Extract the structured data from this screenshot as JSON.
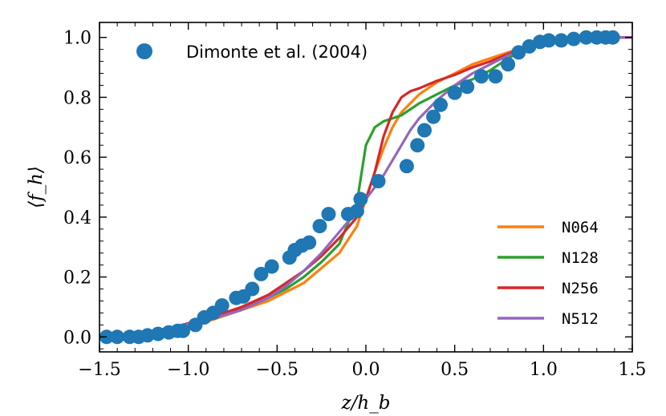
{
  "chart_data": {
    "type": "line",
    "xlabel": "z/h_b",
    "ylabel": "⟨f_h⟩",
    "xlim": [
      -1.5,
      1.5
    ],
    "ylim": [
      -0.05,
      1.05
    ],
    "xticks": [
      -1.5,
      -1.0,
      -0.5,
      0.0,
      0.5,
      1.0,
      1.5
    ],
    "xtick_labels": [
      "−1.5",
      "−1.0",
      "−0.5",
      "0.0",
      "0.5",
      "1.0",
      "1.5"
    ],
    "yticks": [
      0.0,
      0.2,
      0.4,
      0.6,
      0.8,
      1.0
    ],
    "ytick_labels": [
      "0.0",
      "0.2",
      "0.4",
      "0.6",
      "0.8",
      "1.0"
    ],
    "grid": false,
    "legend_placement": [
      "top-left",
      "lower-right"
    ],
    "scatter": {
      "name": "Dimonte et al. (2004)",
      "color": "#1f77b4",
      "points": [
        [
          -1.46,
          0.0
        ],
        [
          -1.4,
          0.0
        ],
        [
          -1.33,
          0.0
        ],
        [
          -1.28,
          0.0
        ],
        [
          -1.23,
          0.005
        ],
        [
          -1.17,
          0.01
        ],
        [
          -1.11,
          0.015
        ],
        [
          -1.06,
          0.02
        ],
        [
          -1.03,
          0.02
        ],
        [
          -0.96,
          0.04
        ],
        [
          -0.91,
          0.065
        ],
        [
          -0.86,
          0.08
        ],
        [
          -0.81,
          0.105
        ],
        [
          -0.73,
          0.13
        ],
        [
          -0.69,
          0.135
        ],
        [
          -0.64,
          0.16
        ],
        [
          -0.59,
          0.21
        ],
        [
          -0.53,
          0.235
        ],
        [
          -0.43,
          0.265
        ],
        [
          -0.4,
          0.29
        ],
        [
          -0.36,
          0.305
        ],
        [
          -0.32,
          0.315
        ],
        [
          -0.26,
          0.37
        ],
        [
          -0.21,
          0.41
        ],
        [
          -0.1,
          0.41
        ],
        [
          -0.05,
          0.42
        ],
        [
          -0.03,
          0.46
        ],
        [
          0.07,
          0.52
        ],
        [
          0.23,
          0.57
        ],
        [
          0.29,
          0.64
        ],
        [
          0.33,
          0.69
        ],
        [
          0.38,
          0.735
        ],
        [
          0.42,
          0.775
        ],
        [
          0.5,
          0.815
        ],
        [
          0.57,
          0.835
        ],
        [
          0.65,
          0.87
        ],
        [
          0.73,
          0.87
        ],
        [
          0.8,
          0.91
        ],
        [
          0.86,
          0.95
        ],
        [
          0.92,
          0.97
        ],
        [
          0.98,
          0.985
        ],
        [
          1.03,
          0.99
        ],
        [
          1.1,
          0.99
        ],
        [
          1.17,
          0.995
        ],
        [
          1.24,
          1.0
        ],
        [
          1.3,
          1.0
        ],
        [
          1.35,
          1.0
        ],
        [
          1.39,
          1.0
        ]
      ]
    },
    "series": [
      {
        "name": "N064",
        "color": "#ff7f0e",
        "x": [
          -1.5,
          -1.3,
          -1.1,
          -0.9,
          -0.7,
          -0.55,
          -0.45,
          -0.35,
          -0.25,
          -0.15,
          -0.05,
          0.0,
          0.05,
          0.1,
          0.15,
          0.2,
          0.25,
          0.3,
          0.4,
          0.5,
          0.6,
          0.7,
          0.8,
          0.9,
          1.0,
          1.1,
          1.2,
          1.3,
          1.4,
          1.5
        ],
        "values": [
          0.0,
          0.01,
          0.025,
          0.05,
          0.09,
          0.12,
          0.15,
          0.18,
          0.23,
          0.28,
          0.37,
          0.46,
          0.55,
          0.63,
          0.7,
          0.75,
          0.78,
          0.81,
          0.85,
          0.88,
          0.91,
          0.93,
          0.95,
          0.97,
          0.985,
          0.995,
          1.0,
          1.0,
          1.0,
          1.0
        ]
      },
      {
        "name": "N128",
        "color": "#2ca02c",
        "x": [
          -1.5,
          -1.3,
          -1.1,
          -0.9,
          -0.7,
          -0.55,
          -0.45,
          -0.35,
          -0.25,
          -0.15,
          -0.05,
          0.0,
          0.05,
          0.1,
          0.15,
          0.2,
          0.25,
          0.3,
          0.4,
          0.5,
          0.6,
          0.7,
          0.8,
          0.9,
          1.0,
          1.1,
          1.2,
          1.3,
          1.4,
          1.5
        ],
        "values": [
          0.0,
          0.01,
          0.03,
          0.06,
          0.095,
          0.13,
          0.16,
          0.2,
          0.25,
          0.31,
          0.45,
          0.64,
          0.7,
          0.72,
          0.73,
          0.74,
          0.76,
          0.78,
          0.81,
          0.84,
          0.86,
          0.89,
          0.93,
          0.96,
          0.985,
          0.995,
          1.0,
          1.0,
          1.0,
          1.0
        ]
      },
      {
        "name": "N256",
        "color": "#d62728",
        "x": [
          -1.5,
          -1.3,
          -1.1,
          -0.9,
          -0.7,
          -0.55,
          -0.45,
          -0.35,
          -0.25,
          -0.15,
          -0.05,
          0.0,
          0.05,
          0.1,
          0.15,
          0.2,
          0.25,
          0.3,
          0.4,
          0.5,
          0.6,
          0.7,
          0.8,
          0.9,
          1.0,
          1.1,
          1.2,
          1.3,
          1.4,
          1.5
        ],
        "values": [
          0.0,
          0.01,
          0.03,
          0.06,
          0.1,
          0.14,
          0.18,
          0.22,
          0.27,
          0.33,
          0.4,
          0.46,
          0.55,
          0.67,
          0.75,
          0.8,
          0.82,
          0.83,
          0.855,
          0.875,
          0.9,
          0.92,
          0.945,
          0.965,
          0.985,
          0.995,
          1.0,
          1.0,
          1.0,
          1.0
        ]
      },
      {
        "name": "N512",
        "color": "#9467bd",
        "x": [
          -1.5,
          -1.3,
          -1.1,
          -0.9,
          -0.7,
          -0.55,
          -0.45,
          -0.35,
          -0.25,
          -0.15,
          -0.05,
          0.0,
          0.05,
          0.1,
          0.15,
          0.2,
          0.25,
          0.3,
          0.4,
          0.5,
          0.6,
          0.7,
          0.8,
          0.9,
          1.0,
          1.1,
          1.2,
          1.3,
          1.4,
          1.5
        ],
        "values": [
          0.0,
          0.01,
          0.03,
          0.055,
          0.09,
          0.13,
          0.17,
          0.22,
          0.28,
          0.35,
          0.42,
          0.46,
          0.5,
          0.54,
          0.59,
          0.64,
          0.69,
          0.73,
          0.79,
          0.84,
          0.88,
          0.91,
          0.94,
          0.96,
          0.98,
          0.99,
          1.0,
          1.0,
          1.0,
          1.0
        ]
      }
    ]
  }
}
